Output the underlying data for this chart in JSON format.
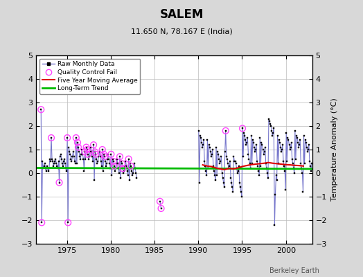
{
  "title": "SALEM",
  "subtitle": "11.650 N, 78.167 E (India)",
  "ylabel": "Temperature Anomaly (°C)",
  "xlabel_bottom": "Berkeley Earth",
  "ylim": [
    -3,
    5
  ],
  "yticks": [
    -3,
    -2,
    -1,
    0,
    1,
    2,
    3,
    4,
    5
  ],
  "xlim_start": 1971.5,
  "xlim_end": 2003.0,
  "xticks": [
    1975,
    1980,
    1985,
    1990,
    1995,
    2000
  ],
  "bg_color": "#d8d8d8",
  "plot_bg_color": "#ffffff",
  "grid_color": "#bbbbbb",
  "raw_line_color": "#7777cc",
  "raw_marker_color": "#000000",
  "qc_fail_color": "#ff44ff",
  "moving_avg_color": "#dd0000",
  "trend_color": "#00bb00",
  "raw_monthly_segments": [
    [
      [
        1972.04,
        2.7
      ],
      [
        1972.12,
        -2.1
      ],
      [
        1972.21,
        0.5
      ],
      [
        1972.29,
        0.2
      ],
      [
        1972.38,
        0.3
      ],
      [
        1972.46,
        0.4
      ],
      [
        1972.54,
        0.2
      ],
      [
        1972.62,
        0.1
      ],
      [
        1972.71,
        0.3
      ],
      [
        1972.79,
        0.2
      ],
      [
        1972.88,
        0.1
      ],
      [
        1972.96,
        0.2
      ],
      [
        1973.04,
        0.6
      ],
      [
        1973.12,
        0.5
      ],
      [
        1973.21,
        1.5
      ],
      [
        1973.29,
        0.6
      ],
      [
        1973.38,
        0.5
      ],
      [
        1973.46,
        0.3
      ],
      [
        1973.54,
        0.4
      ],
      [
        1973.62,
        0.5
      ],
      [
        1973.71,
        0.6
      ],
      [
        1973.79,
        0.4
      ],
      [
        1973.88,
        0.3
      ],
      [
        1973.96,
        0.2
      ],
      [
        1974.04,
        0.5
      ],
      [
        1974.12,
        -0.4
      ],
      [
        1974.21,
        0.7
      ],
      [
        1974.29,
        0.8
      ],
      [
        1974.38,
        0.6
      ],
      [
        1974.46,
        0.4
      ],
      [
        1974.54,
        0.3
      ],
      [
        1974.62,
        0.5
      ],
      [
        1974.71,
        0.6
      ],
      [
        1974.79,
        0.4
      ],
      [
        1974.88,
        0.2
      ],
      [
        1974.96,
        0.1
      ],
      [
        1975.04,
        1.5
      ],
      [
        1975.12,
        -2.1
      ],
      [
        1975.21,
        1.1
      ],
      [
        1975.29,
        0.9
      ],
      [
        1975.38,
        0.8
      ],
      [
        1975.46,
        0.6
      ],
      [
        1975.54,
        0.5
      ],
      [
        1975.62,
        0.7
      ],
      [
        1975.71,
        0.9
      ],
      [
        1975.79,
        0.7
      ],
      [
        1975.88,
        0.5
      ],
      [
        1975.96,
        0.4
      ],
      [
        1976.04,
        1.5
      ],
      [
        1976.12,
        0.4
      ],
      [
        1976.21,
        1.3
      ],
      [
        1976.29,
        1.1
      ],
      [
        1976.38,
        0.9
      ],
      [
        1976.46,
        0.7
      ],
      [
        1976.54,
        0.6
      ],
      [
        1976.62,
        0.8
      ],
      [
        1976.71,
        1.0
      ],
      [
        1976.79,
        0.8
      ],
      [
        1976.88,
        0.6
      ],
      [
        1976.96,
        0.1
      ],
      [
        1977.04,
        0.9
      ],
      [
        1977.12,
        0.6
      ],
      [
        1977.21,
        1.1
      ],
      [
        1977.29,
        1.0
      ],
      [
        1977.38,
        0.8
      ],
      [
        1977.46,
        0.6
      ],
      [
        1977.54,
        0.7
      ],
      [
        1977.62,
        0.9
      ],
      [
        1977.71,
        1.1
      ],
      [
        1977.79,
        0.9
      ],
      [
        1977.88,
        0.7
      ],
      [
        1977.96,
        0.5
      ],
      [
        1978.04,
        1.2
      ],
      [
        1978.12,
        -0.3
      ],
      [
        1978.21,
        0.9
      ],
      [
        1978.29,
        0.8
      ],
      [
        1978.38,
        0.6
      ],
      [
        1978.46,
        0.4
      ],
      [
        1978.54,
        0.5
      ],
      [
        1978.62,
        0.7
      ],
      [
        1978.71,
        0.9
      ],
      [
        1978.79,
        0.7
      ],
      [
        1978.88,
        0.5
      ],
      [
        1978.96,
        0.3
      ],
      [
        1979.04,
        1.0
      ],
      [
        1979.12,
        0.1
      ],
      [
        1979.21,
        0.8
      ],
      [
        1979.29,
        0.7
      ],
      [
        1979.38,
        0.5
      ],
      [
        1979.46,
        0.3
      ],
      [
        1979.54,
        0.4
      ],
      [
        1979.62,
        0.6
      ],
      [
        1979.71,
        0.8
      ],
      [
        1979.79,
        0.6
      ],
      [
        1979.88,
        0.4
      ],
      [
        1979.96,
        0.2
      ],
      [
        1980.04,
        0.8
      ],
      [
        1980.12,
        -0.1
      ],
      [
        1980.21,
        0.6
      ],
      [
        1980.29,
        0.5
      ],
      [
        1980.38,
        0.3
      ],
      [
        1980.46,
        0.1
      ],
      [
        1980.54,
        0.2
      ],
      [
        1980.62,
        0.4
      ],
      [
        1980.71,
        0.6
      ],
      [
        1980.79,
        0.4
      ],
      [
        1980.88,
        0.2
      ],
      [
        1980.96,
        0.0
      ],
      [
        1981.04,
        0.7
      ],
      [
        1981.12,
        -0.2
      ],
      [
        1981.21,
        0.5
      ],
      [
        1981.29,
        0.4
      ],
      [
        1981.38,
        0.2
      ],
      [
        1981.46,
        0.0
      ],
      [
        1981.54,
        0.1
      ],
      [
        1981.62,
        0.3
      ],
      [
        1981.71,
        0.5
      ],
      [
        1981.79,
        0.3
      ],
      [
        1981.88,
        0.1
      ],
      [
        1981.96,
        -0.1
      ],
      [
        1982.04,
        0.6
      ],
      [
        1982.12,
        -0.3
      ],
      [
        1982.21,
        0.4
      ],
      [
        1982.29,
        0.3
      ],
      [
        1982.38,
        0.1
      ],
      [
        1982.46,
        -0.1
      ],
      [
        1982.54,
        0.0
      ],
      [
        1982.62,
        0.2
      ],
      [
        1982.71,
        0.4
      ],
      [
        1982.79,
        0.2
      ],
      [
        1982.88,
        0.0
      ],
      [
        1982.96,
        -0.2
      ]
    ],
    [
      [
        1985.62,
        -1.2
      ],
      [
        1985.75,
        -1.5
      ]
    ],
    [
      [
        1990.04,
        1.8
      ],
      [
        1990.12,
        -0.4
      ],
      [
        1990.21,
        1.6
      ],
      [
        1990.29,
        1.5
      ],
      [
        1990.38,
        1.3
      ],
      [
        1990.46,
        1.1
      ],
      [
        1990.54,
        1.2
      ],
      [
        1990.62,
        1.4
      ],
      [
        1990.71,
        0.5
      ],
      [
        1990.79,
        0.3
      ],
      [
        1990.88,
        0.1
      ],
      [
        1990.96,
        -0.1
      ],
      [
        1991.04,
        1.4
      ],
      [
        1991.12,
        0.2
      ],
      [
        1991.21,
        1.2
      ],
      [
        1991.29,
        1.1
      ],
      [
        1991.38,
        0.9
      ],
      [
        1991.46,
        0.7
      ],
      [
        1991.54,
        0.8
      ],
      [
        1991.62,
        1.0
      ],
      [
        1991.71,
        0.3
      ],
      [
        1991.79,
        0.1
      ],
      [
        1991.88,
        -0.1
      ],
      [
        1991.96,
        -0.3
      ],
      [
        1992.04,
        1.1
      ],
      [
        1992.12,
        -0.1
      ],
      [
        1992.21,
        0.9
      ],
      [
        1992.29,
        0.8
      ],
      [
        1992.38,
        0.6
      ],
      [
        1992.46,
        0.4
      ],
      [
        1992.54,
        0.5
      ],
      [
        1992.62,
        0.7
      ],
      [
        1992.71,
        0.0
      ],
      [
        1992.79,
        -0.2
      ],
      [
        1992.88,
        -0.4
      ],
      [
        1992.96,
        -0.6
      ],
      [
        1993.04,
        0.9
      ],
      [
        1993.12,
        1.8
      ],
      [
        1993.21,
        0.7
      ],
      [
        1993.29,
        0.6
      ],
      [
        1993.38,
        0.4
      ],
      [
        1993.46,
        0.2
      ],
      [
        1993.54,
        0.3
      ],
      [
        1993.62,
        0.5
      ],
      [
        1993.71,
        -0.2
      ],
      [
        1993.79,
        -0.4
      ],
      [
        1993.88,
        -0.6
      ],
      [
        1993.96,
        -0.8
      ],
      [
        1994.04,
        0.7
      ],
      [
        1994.12,
        0.5
      ],
      [
        1994.21,
        0.5
      ],
      [
        1994.29,
        0.4
      ],
      [
        1994.38,
        0.2
      ],
      [
        1994.46,
        0.0
      ],
      [
        1994.54,
        0.1
      ],
      [
        1994.62,
        0.3
      ],
      [
        1994.71,
        -0.4
      ],
      [
        1994.79,
        -0.6
      ],
      [
        1994.88,
        -0.8
      ],
      [
        1994.96,
        -1.0
      ],
      [
        1995.04,
        1.9
      ],
      [
        1995.12,
        0.7
      ],
      [
        1995.21,
        1.7
      ],
      [
        1995.29,
        1.6
      ],
      [
        1995.38,
        1.4
      ],
      [
        1995.46,
        1.2
      ],
      [
        1995.54,
        1.3
      ],
      [
        1995.62,
        1.5
      ],
      [
        1995.71,
        0.8
      ],
      [
        1995.79,
        0.6
      ],
      [
        1995.88,
        0.4
      ],
      [
        1995.96,
        0.2
      ],
      [
        1996.04,
        1.6
      ],
      [
        1996.12,
        0.4
      ],
      [
        1996.21,
        1.4
      ],
      [
        1996.29,
        1.3
      ],
      [
        1996.38,
        1.1
      ],
      [
        1996.46,
        0.9
      ],
      [
        1996.54,
        1.0
      ],
      [
        1996.62,
        1.2
      ],
      [
        1996.71,
        0.5
      ],
      [
        1996.79,
        0.3
      ],
      [
        1996.88,
        0.1
      ],
      [
        1996.96,
        -0.1
      ],
      [
        1997.04,
        1.5
      ],
      [
        1997.12,
        0.3
      ],
      [
        1997.21,
        1.3
      ],
      [
        1997.29,
        1.2
      ],
      [
        1997.38,
        1.0
      ],
      [
        1997.46,
        0.8
      ],
      [
        1997.54,
        0.9
      ],
      [
        1997.62,
        1.1
      ],
      [
        1997.71,
        0.4
      ],
      [
        1997.79,
        0.2
      ],
      [
        1997.88,
        0.0
      ],
      [
        1997.96,
        -0.2
      ],
      [
        1998.04,
        2.3
      ],
      [
        1998.12,
        2.2
      ],
      [
        1998.21,
        2.1
      ],
      [
        1998.29,
        2.0
      ],
      [
        1998.38,
        1.8
      ],
      [
        1998.46,
        1.6
      ],
      [
        1998.54,
        1.7
      ],
      [
        1998.62,
        1.9
      ],
      [
        1998.71,
        -2.2
      ],
      [
        1998.79,
        -0.9
      ],
      [
        1998.88,
        -0.1
      ],
      [
        1998.96,
        -0.3
      ],
      [
        1999.04,
        1.6
      ],
      [
        1999.12,
        0.4
      ],
      [
        1999.21,
        1.4
      ],
      [
        1999.29,
        1.3
      ],
      [
        1999.38,
        1.1
      ],
      [
        1999.46,
        0.9
      ],
      [
        1999.54,
        1.0
      ],
      [
        1999.62,
        1.2
      ],
      [
        1999.71,
        0.5
      ],
      [
        1999.79,
        0.3
      ],
      [
        1999.88,
        0.1
      ],
      [
        1999.96,
        -0.7
      ],
      [
        2000.04,
        1.7
      ],
      [
        2000.12,
        0.5
      ],
      [
        2000.21,
        1.5
      ],
      [
        2000.29,
        1.4
      ],
      [
        2000.38,
        1.2
      ],
      [
        2000.46,
        1.0
      ],
      [
        2000.54,
        1.1
      ],
      [
        2000.62,
        1.3
      ],
      [
        2000.71,
        0.6
      ],
      [
        2000.79,
        0.4
      ],
      [
        2000.88,
        0.2
      ],
      [
        2000.96,
        0.0
      ],
      [
        2001.04,
        1.8
      ],
      [
        2001.12,
        0.6
      ],
      [
        2001.21,
        1.6
      ],
      [
        2001.29,
        1.5
      ],
      [
        2001.38,
        1.3
      ],
      [
        2001.46,
        1.1
      ],
      [
        2001.54,
        1.2
      ],
      [
        2001.62,
        1.4
      ],
      [
        2001.71,
        0.4
      ],
      [
        2001.79,
        0.2
      ],
      [
        2001.88,
        0.0
      ],
      [
        2001.96,
        -0.8
      ],
      [
        2002.04,
        1.6
      ],
      [
        2002.12,
        0.4
      ],
      [
        2002.21,
        1.4
      ],
      [
        2002.29,
        1.3
      ],
      [
        2002.38,
        1.1
      ],
      [
        2002.46,
        0.9
      ],
      [
        2002.54,
        1.0
      ],
      [
        2002.62,
        1.2
      ],
      [
        2002.71,
        0.5
      ],
      [
        2002.79,
        0.3
      ],
      [
        2002.88,
        0.1
      ],
      [
        2002.96,
        0.4
      ]
    ]
  ],
  "qc_fail_points": [
    [
      1972.04,
      2.7
    ],
    [
      1972.12,
      -2.1
    ],
    [
      1973.21,
      1.5
    ],
    [
      1974.12,
      -0.4
    ],
    [
      1975.04,
      1.5
    ],
    [
      1975.12,
      -2.1
    ],
    [
      1976.04,
      1.5
    ],
    [
      1976.21,
      1.3
    ],
    [
      1976.29,
      1.1
    ],
    [
      1977.04,
      0.9
    ],
    [
      1977.21,
      1.1
    ],
    [
      1977.29,
      1.0
    ],
    [
      1977.38,
      0.8
    ],
    [
      1978.04,
      1.2
    ],
    [
      1978.21,
      0.9
    ],
    [
      1978.29,
      0.8
    ],
    [
      1979.04,
      1.0
    ],
    [
      1979.21,
      0.8
    ],
    [
      1979.29,
      0.7
    ],
    [
      1980.04,
      0.8
    ],
    [
      1980.29,
      0.5
    ],
    [
      1980.38,
      0.3
    ],
    [
      1981.04,
      0.7
    ],
    [
      1981.29,
      0.4
    ],
    [
      1981.38,
      0.2
    ],
    [
      1982.04,
      0.6
    ],
    [
      1982.29,
      0.3
    ],
    [
      1985.62,
      -1.2
    ],
    [
      1985.75,
      -1.5
    ],
    [
      1993.12,
      1.8
    ],
    [
      1995.04,
      1.9
    ]
  ],
  "moving_avg": [
    [
      1990.5,
      0.35
    ],
    [
      1991.0,
      0.3
    ],
    [
      1991.5,
      0.28
    ],
    [
      1992.0,
      0.22
    ],
    [
      1992.5,
      0.18
    ],
    [
      1993.0,
      0.15
    ],
    [
      1993.5,
      0.2
    ],
    [
      1994.0,
      0.18
    ],
    [
      1994.5,
      0.22
    ],
    [
      1995.0,
      0.28
    ],
    [
      1995.5,
      0.32
    ],
    [
      1996.0,
      0.36
    ],
    [
      1996.5,
      0.38
    ],
    [
      1997.0,
      0.4
    ],
    [
      1997.5,
      0.42
    ],
    [
      1998.0,
      0.45
    ],
    [
      1998.5,
      0.42
    ],
    [
      1999.0,
      0.4
    ],
    [
      1999.5,
      0.38
    ],
    [
      2000.0,
      0.36
    ],
    [
      2000.5,
      0.35
    ],
    [
      2001.0,
      0.33
    ],
    [
      2001.5,
      0.32
    ],
    [
      2002.0,
      0.3
    ]
  ],
  "trend_x": [
    1971.5,
    2003.0
  ],
  "trend_y": [
    0.22,
    0.18
  ]
}
